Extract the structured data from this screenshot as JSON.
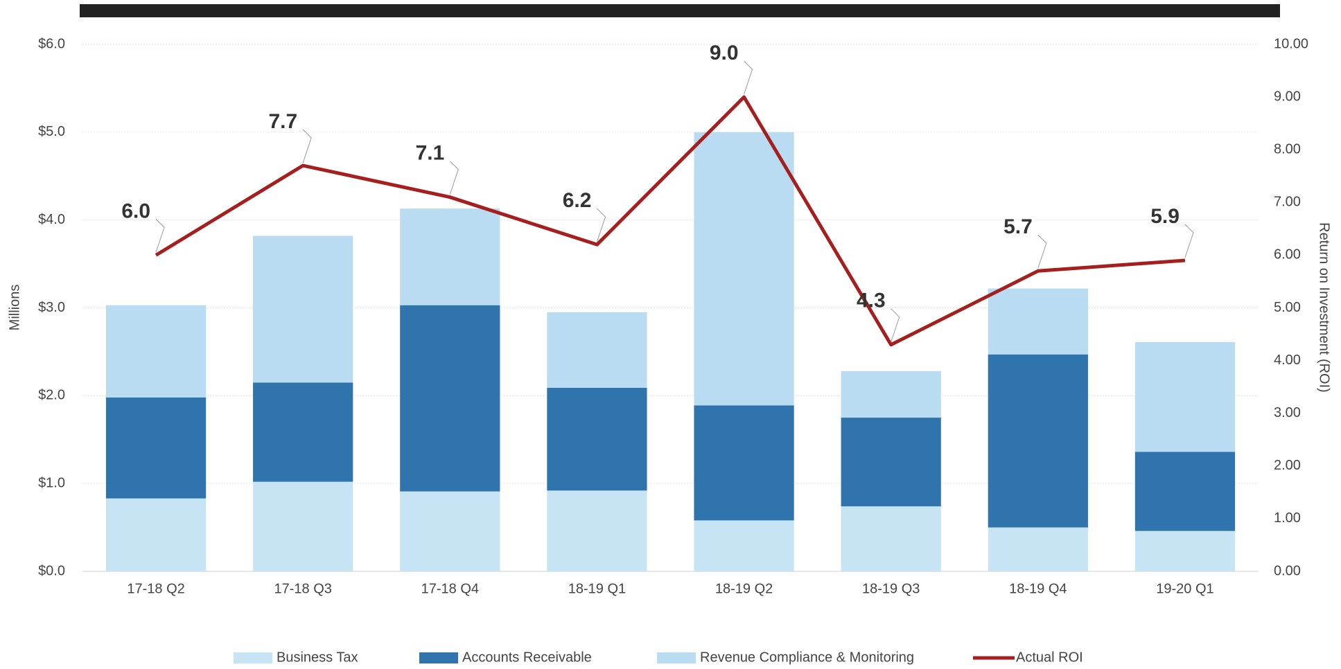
{
  "chart_data": {
    "type": "bar",
    "categories": [
      "17-18 Q2",
      "17-18 Q3",
      "17-18 Q4",
      "18-19 Q1",
      "18-19 Q2",
      "18-19 Q3",
      "18-19 Q4",
      "19-20 Q1"
    ],
    "series": [
      {
        "name": "Business Tax",
        "color": "#c6e4f4",
        "values": [
          0.83,
          1.02,
          0.91,
          0.92,
          0.58,
          0.74,
          0.5,
          0.46
        ]
      },
      {
        "name": "Accounts Receivable",
        "color": "#2f74ad",
        "values": [
          1.15,
          1.13,
          2.12,
          1.17,
          1.31,
          1.01,
          1.97,
          0.9
        ]
      },
      {
        "name": "Revenue Compliance & Monitoring",
        "color": "#b9dcf2",
        "values": [
          1.05,
          1.67,
          1.1,
          0.86,
          3.11,
          0.53,
          0.75,
          1.25
        ]
      },
      {
        "name": "Actual ROI",
        "color": "#a51f1f",
        "axis": "y2",
        "type": "line",
        "values": [
          6.0,
          7.7,
          7.1,
          6.2,
          9.0,
          4.3,
          5.7,
          5.9
        ],
        "value_labels": [
          "6.0",
          "7.7",
          "7.1",
          "6.2",
          "9.0",
          "4.3",
          "5.7",
          "5.9"
        ]
      }
    ],
    "y_label": "Millions",
    "y2_label": "Return on Investment (ROI)",
    "ylim": [
      0,
      6
    ],
    "yticks": [
      {
        "value": 0,
        "label": "$0.0"
      },
      {
        "value": 1,
        "label": "$1.0"
      },
      {
        "value": 2,
        "label": "$2.0"
      },
      {
        "value": 3,
        "label": "$3.0"
      },
      {
        "value": 4,
        "label": "$4.0"
      },
      {
        "value": 5,
        "label": "$5.0"
      },
      {
        "value": 6,
        "label": "$6.0"
      }
    ],
    "y2lim": [
      0,
      10
    ],
    "y2ticks": [
      {
        "value": 0,
        "label": "0.00"
      },
      {
        "value": 1,
        "label": "1.00"
      },
      {
        "value": 2,
        "label": "2.00"
      },
      {
        "value": 3,
        "label": "3.00"
      },
      {
        "value": 4,
        "label": "4.00"
      },
      {
        "value": 5,
        "label": "5.00"
      },
      {
        "value": 6,
        "label": "6.00"
      },
      {
        "value": 7,
        "label": "7.00"
      },
      {
        "value": 8,
        "label": "8.00"
      },
      {
        "value": 9,
        "label": "9.00"
      },
      {
        "value": 10,
        "label": "10.00"
      }
    ],
    "grid": true,
    "legend": "bottom"
  }
}
